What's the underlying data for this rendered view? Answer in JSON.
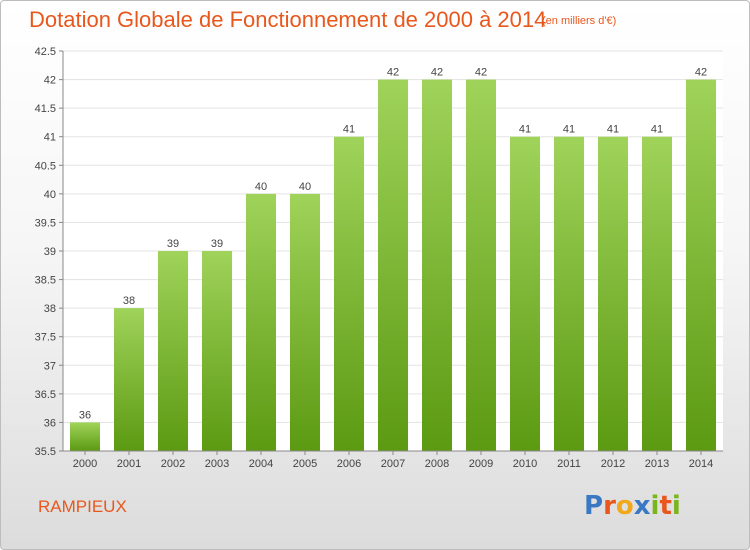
{
  "header": {
    "title": "Dotation Globale de Fonctionnement de 2000 à 2014",
    "subtitle": "(en milliers d'€)"
  },
  "footer": {
    "commune": "RAMPIEUX",
    "logo_text": "Proxiti",
    "logo_letters": [
      {
        "ch": "P",
        "color": "#3a78c3"
      },
      {
        "ch": "r",
        "color": "#e8581d"
      },
      {
        "ch": "o",
        "color": "#f2a81d"
      },
      {
        "ch": "x",
        "color": "#3a78c3"
      },
      {
        "ch": "i",
        "color": "#7ab51d"
      },
      {
        "ch": "t",
        "color": "#e8581d"
      },
      {
        "ch": "i",
        "color": "#7ab51d"
      }
    ]
  },
  "colors": {
    "bar_top": "#9fd35a",
    "bar_bottom": "#5c9a12",
    "title": "#e8581d",
    "grid": "#e3e3e3",
    "axis": "#888888"
  },
  "chart_data": {
    "type": "bar",
    "categories": [
      "2000",
      "2001",
      "2002",
      "2003",
      "2004",
      "2005",
      "2006",
      "2007",
      "2008",
      "2009",
      "2010",
      "2011",
      "2012",
      "2013",
      "2014"
    ],
    "values": [
      36,
      38,
      39,
      39,
      40,
      40,
      41,
      42,
      42,
      42,
      41,
      41,
      41,
      41,
      42
    ],
    "data_labels": [
      "36",
      "38",
      "39",
      "39",
      "40",
      "40",
      "41",
      "42",
      "42",
      "42",
      "41",
      "41",
      "41",
      "41",
      "42"
    ],
    "y_ticks": [
      35.5,
      36,
      36.5,
      37,
      37.5,
      38,
      38.5,
      39,
      39.5,
      40,
      40.5,
      41,
      41.5,
      42,
      42.5
    ],
    "y_tick_labels": [
      "35.5",
      "36",
      "36.5",
      "37",
      "37.5",
      "38",
      "38.5",
      "39",
      "39.5",
      "40",
      "40.5",
      "41",
      "41.5",
      "42",
      "42.5"
    ],
    "ylim": [
      35.5,
      42.5
    ],
    "grid": true,
    "title": "Dotation Globale de Fonctionnement de 2000 à 2014",
    "xlabel": "",
    "ylabel": ""
  }
}
